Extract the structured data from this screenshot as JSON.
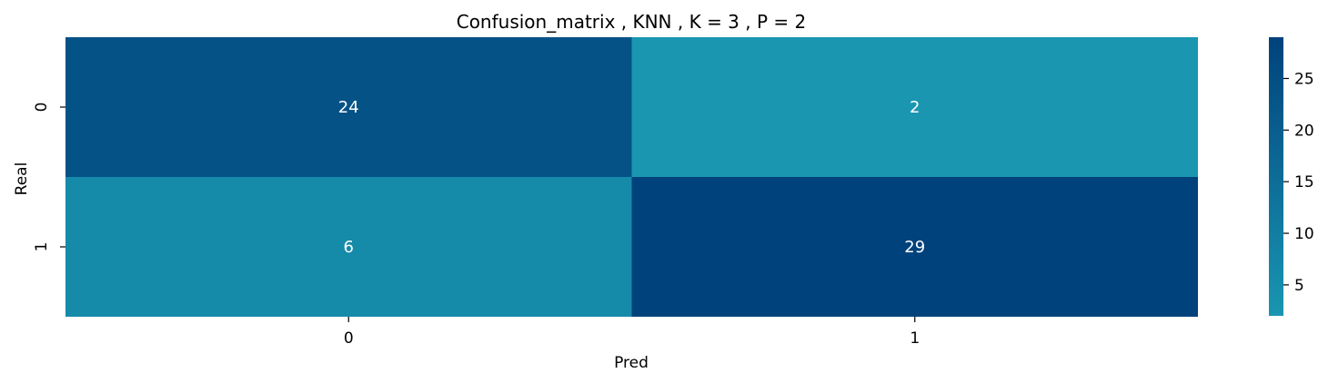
{
  "chart_data": {
    "type": "heatmap",
    "title": "Confusion_matrix , KNN , K = 3 , P = 2",
    "xlabel": "Pred",
    "ylabel": "Real",
    "x_categories": [
      "0",
      "1"
    ],
    "y_categories": [
      "0",
      "1"
    ],
    "values": [
      [
        24,
        2
      ],
      [
        6,
        29
      ]
    ],
    "colorbar": {
      "min": 2,
      "max": 29,
      "ticks": [
        5,
        10,
        15,
        20,
        25
      ],
      "tick_labels": [
        "5",
        "10",
        "15",
        "20",
        "25"
      ],
      "color_low": "#1a96b1",
      "color_high": "#00427c"
    },
    "annotation_color": "#ffffff",
    "grid": false
  }
}
